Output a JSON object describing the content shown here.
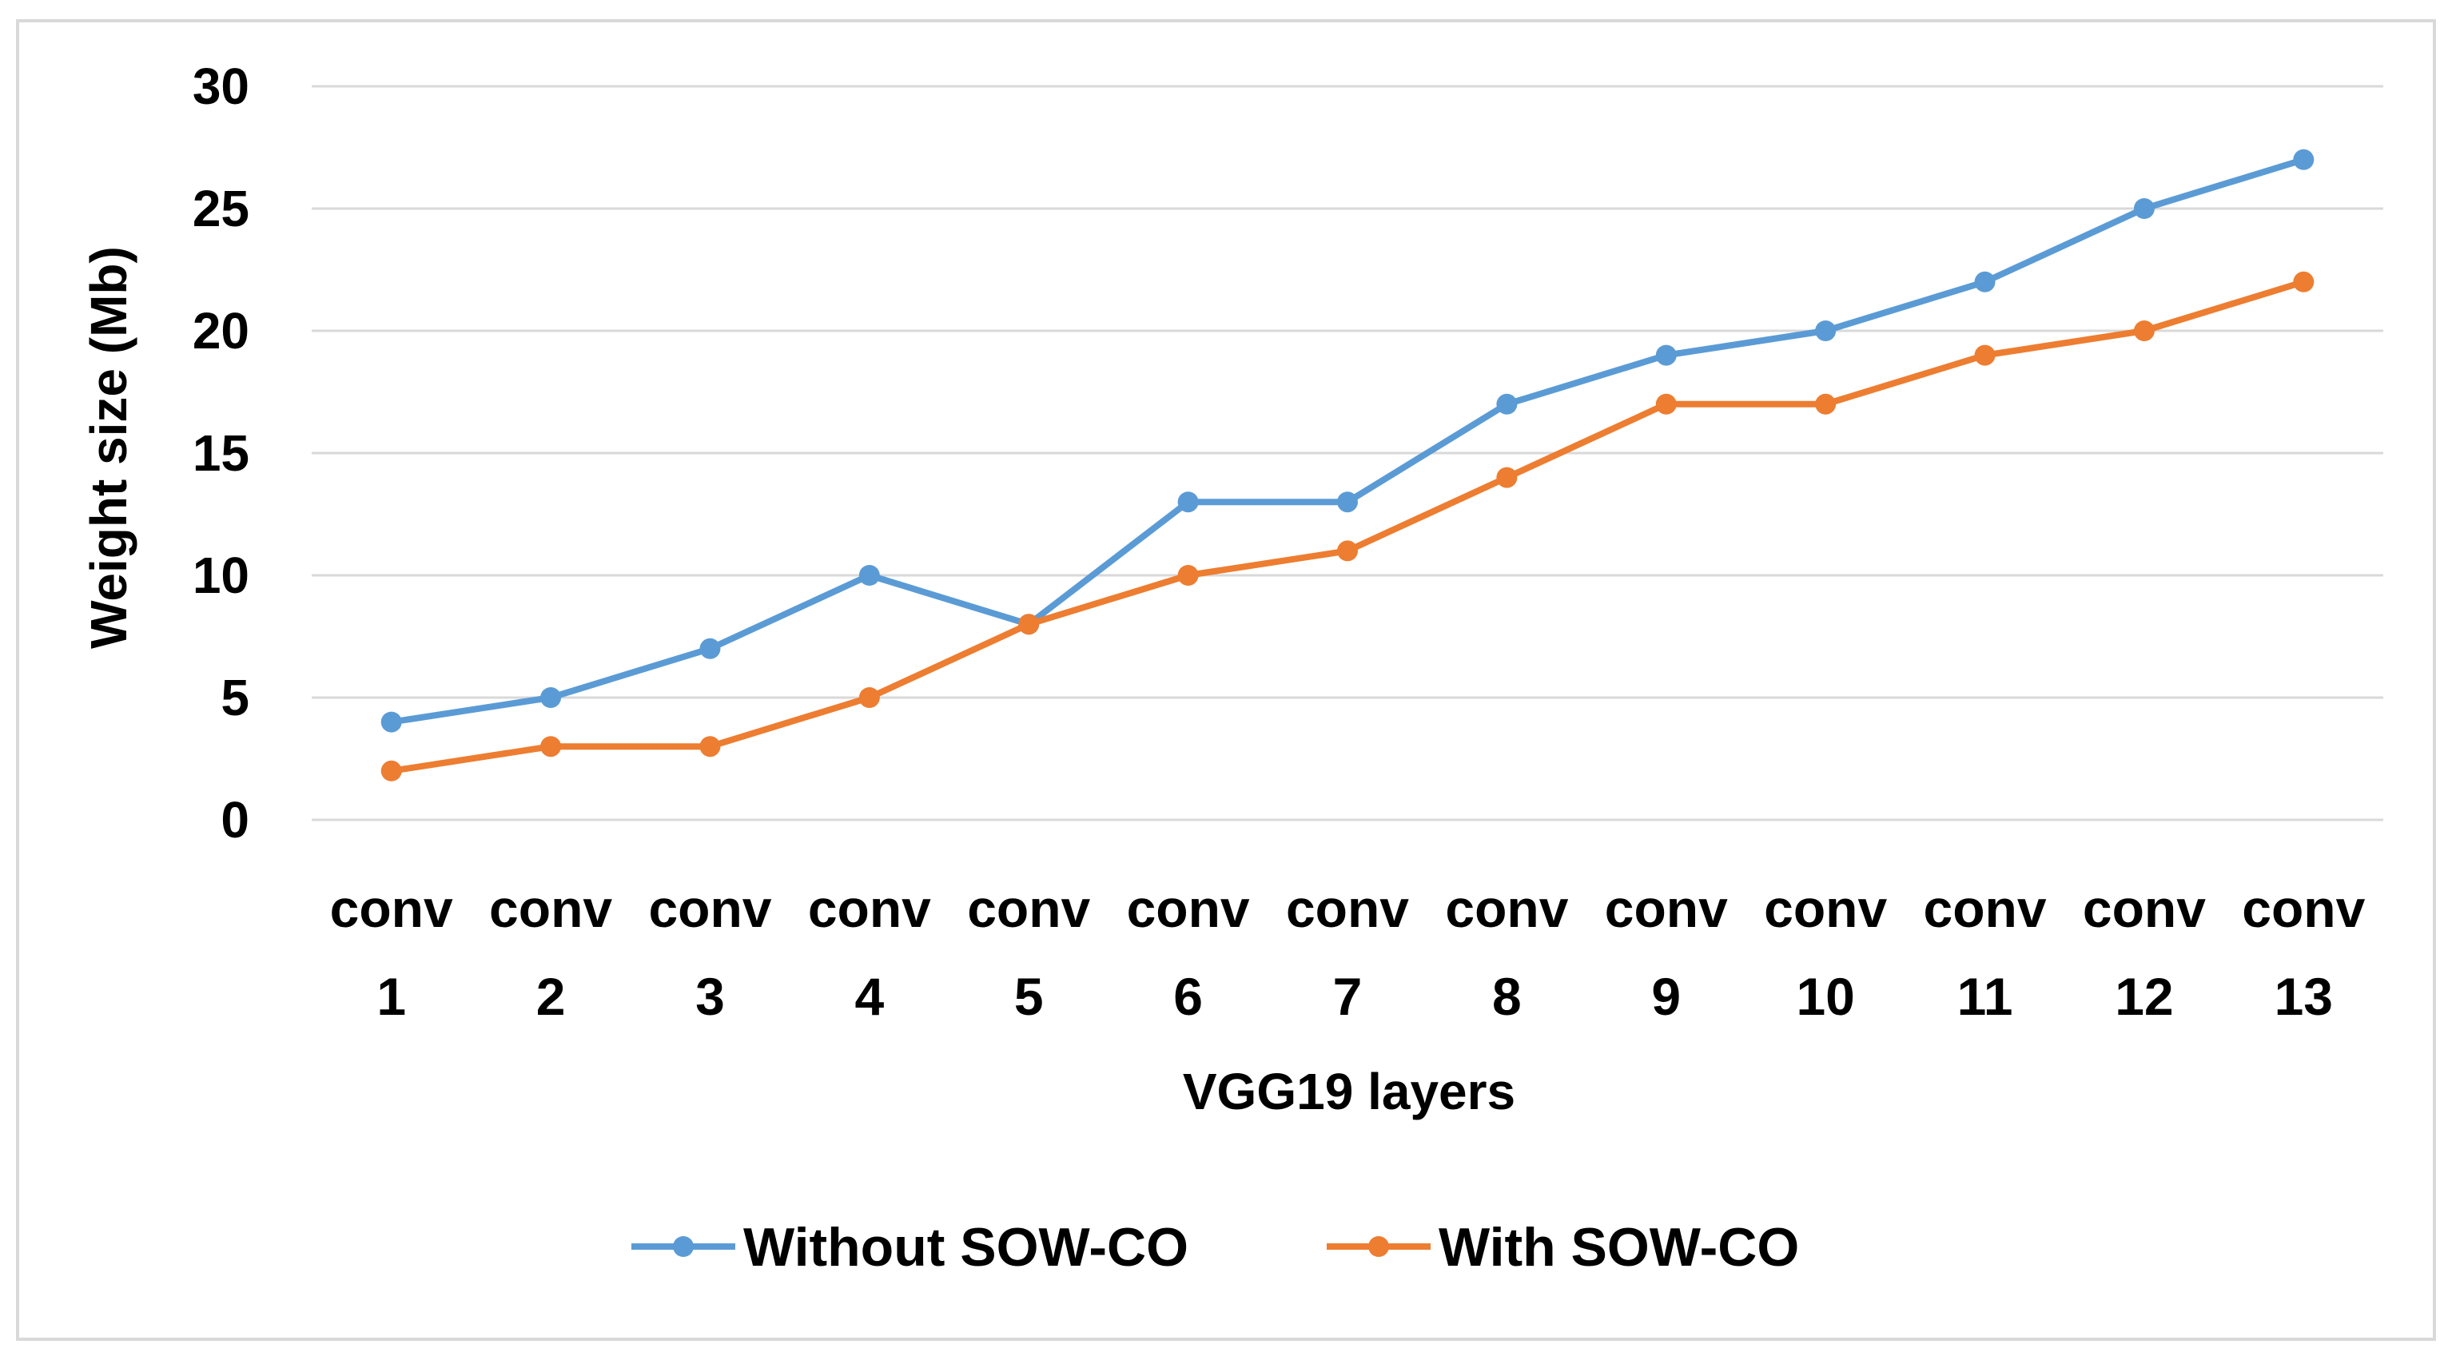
{
  "chart_data": {
    "type": "line",
    "title": "",
    "xlabel": "VGG19 layers",
    "ylabel": "Weight size (Mb)",
    "ylim": [
      0,
      30
    ],
    "yticks": [
      0,
      5,
      10,
      15,
      20,
      25,
      30
    ],
    "grid": true,
    "legend_position": "bottom",
    "categories": [
      [
        "conv",
        "1"
      ],
      [
        "conv",
        "2"
      ],
      [
        "conv",
        "3"
      ],
      [
        "conv",
        "4"
      ],
      [
        "conv",
        "5"
      ],
      [
        "conv",
        "6"
      ],
      [
        "conv",
        "7"
      ],
      [
        "conv",
        "8"
      ],
      [
        "conv",
        "9"
      ],
      [
        "conv",
        "10"
      ],
      [
        "conv",
        "11"
      ],
      [
        "conv",
        "12"
      ],
      [
        "conv",
        "13"
      ]
    ],
    "series": [
      {
        "name": "Without SOW-CO",
        "color": "#5b9bd5",
        "values": [
          4,
          5,
          7,
          10,
          8,
          13,
          13,
          17,
          19,
          20,
          22,
          25,
          27
        ]
      },
      {
        "name": "With SOW-CO",
        "color": "#ed7d31",
        "values": [
          2,
          3,
          3,
          5,
          8,
          10,
          11,
          14,
          17,
          17,
          19,
          20,
          22
        ]
      }
    ]
  }
}
